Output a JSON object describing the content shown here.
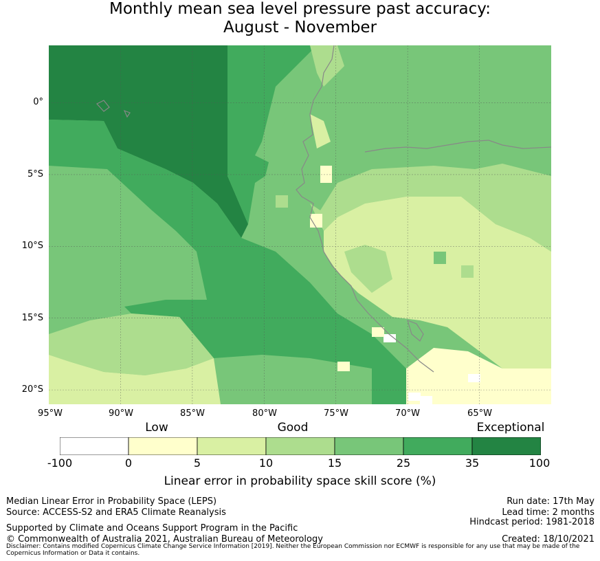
{
  "title_line1": "Monthly mean sea level pressure past accuracy:",
  "title_line2": "August - November",
  "map": {
    "lat_labels": [
      "0°",
      "5°S",
      "10°S",
      "15°S",
      "20°S"
    ],
    "lon_labels": [
      "95°W",
      "90°W",
      "85°W",
      "80°W",
      "75°W",
      "70°W",
      "65°W"
    ],
    "extent": {
      "lon_min": -95,
      "lon_max": -60,
      "lat_min": -21,
      "lat_max": 4
    }
  },
  "legend": {
    "categories": [
      "Low",
      "Good",
      "Exceptional"
    ],
    "ticks": [
      "-100",
      "0",
      "5",
      "10",
      "15",
      "25",
      "35",
      "100"
    ],
    "colors": [
      "#ffffff",
      "#ffffcc",
      "#d9f0a3",
      "#addd8e",
      "#78c679",
      "#41ab5d",
      "#238443"
    ],
    "label": "Linear error in probability space skill score (%)"
  },
  "footer": {
    "left1": "Median Linear Error in Probability Space (LEPS)",
    "left2": "Source: ACCESS-S2 and ERA5 Climate Reanalysis",
    "left3": "Supported by Climate and Oceans Support Program in the Pacific",
    "left4": "© Commonwealth of Australia 2021, Australian Bureau of Meteorology",
    "right1": "Run date: 17th May",
    "right2": "Lead time: 2 months",
    "right3": "Hindcast period: 1981-2018",
    "right4": "Created: 18/10/2021",
    "disclaimer": "Disclaimer: Contains modified Copernicus Climate Change Service Information [2019]. Neither the European Commission nor ECMWF is responsible for any use that may be made of the Copernicus Information or Data it contains."
  }
}
